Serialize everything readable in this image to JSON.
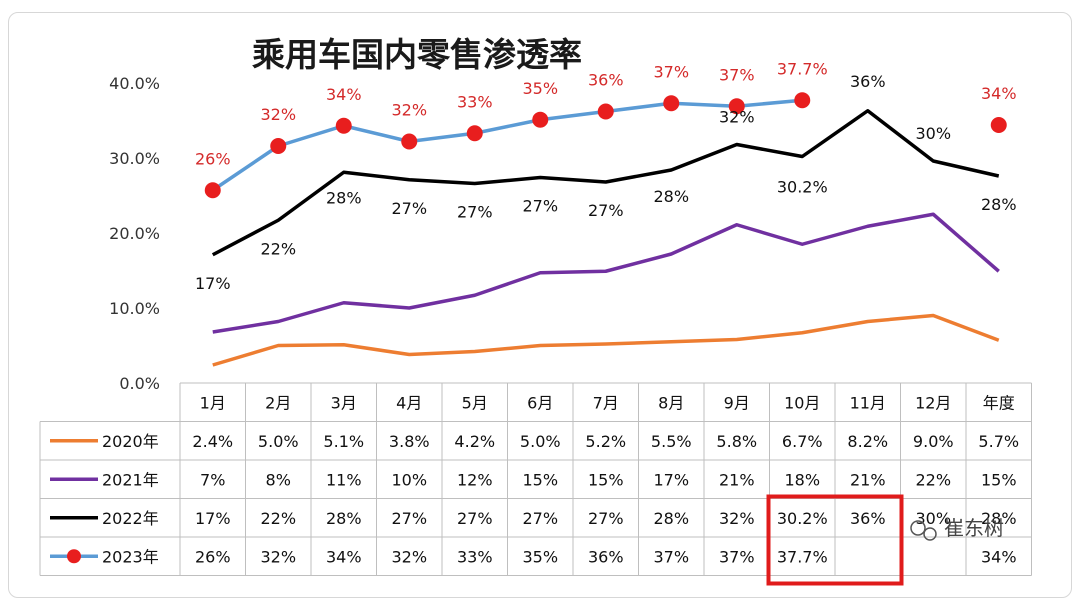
{
  "chart_data": {
    "type": "line",
    "title": "乘用车国内零售渗透率",
    "categories": [
      "1月",
      "2月",
      "3月",
      "4月",
      "5月",
      "6月",
      "7月",
      "8月",
      "9月",
      "10月",
      "11月",
      "12月",
      "年度"
    ],
    "ylim": [
      0,
      40
    ],
    "yticks": [
      "0.0%",
      "10.0%",
      "20.0%",
      "30.0%",
      "40.0%"
    ],
    "grid": false,
    "legend": "data table rows",
    "series": [
      {
        "name": "2020年",
        "color": "#ed7d31",
        "marker": "none",
        "values": [
          2.4,
          5.0,
          5.1,
          3.8,
          4.2,
          5.0,
          5.2,
          5.5,
          5.8,
          6.7,
          8.2,
          9.0,
          5.7
        ],
        "labels": [
          "2.4%",
          "5.0%",
          "5.1%",
          "3.8%",
          "4.2%",
          "5.0%",
          "5.2%",
          "5.5%",
          "5.8%",
          "6.7%",
          "8.2%",
          "9.0%",
          "5.7%"
        ]
      },
      {
        "name": "2021年",
        "color": "#7030a0",
        "marker": "none",
        "values": [
          6.8,
          8.2,
          10.7,
          10.0,
          11.7,
          14.7,
          14.9,
          17.2,
          21.1,
          18.5,
          20.9,
          22.5,
          14.9
        ],
        "labels": [
          "7%",
          "8%",
          "11%",
          "10%",
          "12%",
          "15%",
          "15%",
          "17%",
          "21%",
          "18%",
          "21%",
          "22%",
          "15%"
        ]
      },
      {
        "name": "2022年",
        "color": "#000000",
        "marker": "none",
        "values": [
          17.1,
          21.7,
          28.1,
          27.1,
          26.6,
          27.4,
          26.8,
          28.4,
          31.8,
          30.2,
          36.3,
          29.6,
          27.6
        ],
        "labels": [
          "17%",
          "22%",
          "28%",
          "27%",
          "27%",
          "27%",
          "27%",
          "28%",
          "32%",
          "30.2%",
          "36%",
          "30%",
          "28%"
        ],
        "point_labels": [
          "17%",
          "22%",
          "28%",
          "27%",
          "27%",
          "27%",
          "27%",
          "28%",
          "32%",
          "30.2%",
          "36%",
          "30%",
          "28%"
        ]
      },
      {
        "name": "2023年",
        "color": "#5b9bd5",
        "marker": "circle",
        "marker_color": "#e81e1e",
        "values": [
          25.7,
          31.6,
          34.3,
          32.2,
          33.3,
          35.1,
          36.2,
          37.3,
          36.9,
          37.7,
          null,
          null,
          34.4
        ],
        "labels": [
          "26%",
          "32%",
          "34%",
          "32%",
          "33%",
          "35%",
          "36%",
          "37%",
          "37%",
          "37.7%",
          "",
          "",
          "34%"
        ],
        "point_labels": [
          "26%",
          "32%",
          "34%",
          "32%",
          "33%",
          "35%",
          "36%",
          "37%",
          "37%",
          "37.7%",
          "",
          "",
          "34%"
        ]
      }
    ],
    "highlight": {
      "columns": [
        "10月",
        "11月"
      ],
      "rows": [
        "2022年",
        "2023年"
      ],
      "color": "#e01b1b"
    }
  },
  "watermark": "崔东树"
}
